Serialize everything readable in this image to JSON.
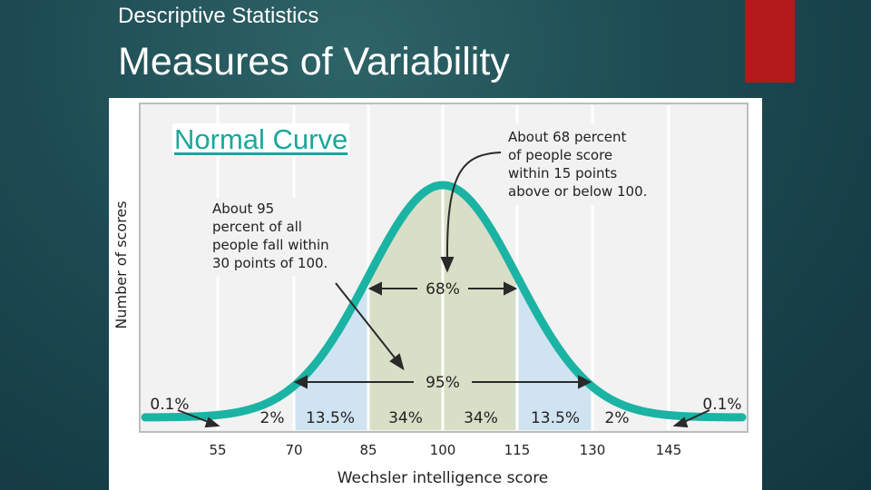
{
  "header": {
    "subtitle": "Descriptive Statistics",
    "title": "Measures of Variability"
  },
  "diagram": {
    "heading": "Normal Curve",
    "y_axis_label": "Number of scores",
    "x_axis_label": "Wechsler intelligence score",
    "x_ticks": [
      "55",
      "70",
      "85",
      "100",
      "115",
      "130",
      "145"
    ],
    "tail_left": "0.1%",
    "tail_right": "0.1%",
    "segments": [
      "2%",
      "13.5%",
      "34%",
      "34%",
      "13.5%",
      "2%"
    ],
    "band_68_label": "68%",
    "band_95_label": "95%",
    "note_68": [
      "About 68 percent",
      "of people score",
      "within 15 points",
      "above or below 100."
    ],
    "note_95": [
      "About 95",
      "percent of all",
      "people fall within",
      "30 points of 100."
    ],
    "colors": {
      "curve": "#1bb3a4",
      "inner_fill": "#d9dfc7",
      "outer_fill": "#cfe3f1",
      "accent_bar": "#b3191b"
    }
  }
}
